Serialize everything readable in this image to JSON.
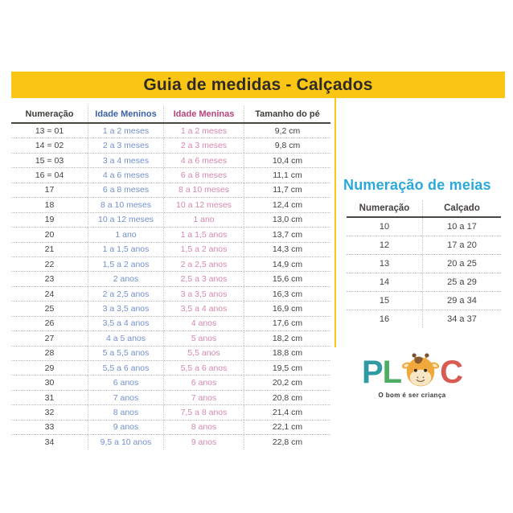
{
  "title": "Guia de medidas - Calçados",
  "main_table": {
    "headers": [
      "Numeração",
      "Idade Meninos",
      "Idade Meninas",
      "Tamanho do pé"
    ],
    "rows": [
      [
        "13 = 01",
        "1 a 2 meses",
        "1 a 2 meses",
        "9,2 cm"
      ],
      [
        "14 = 02",
        "2 a 3 meses",
        "2 a 3 meses",
        "9,8 cm"
      ],
      [
        "15 = 03",
        "3 a 4 meses",
        "4 a 6 meses",
        "10,4 cm"
      ],
      [
        "16 = 04",
        "4 a 6 meses",
        "6 a 8 meses",
        "11,1 cm"
      ],
      [
        "17",
        "6 a 8 meses",
        "8 a 10 meses",
        "11,7 cm"
      ],
      [
        "18",
        "8 a 10 meses",
        "10 a 12 meses",
        "12,4 cm"
      ],
      [
        "19",
        "10 a 12 meses",
        "1 ano",
        "13,0 cm"
      ],
      [
        "20",
        "1 ano",
        "1 a 1,5 anos",
        "13,7 cm"
      ],
      [
        "21",
        "1 a 1,5 anos",
        "1,5 a 2 anos",
        "14,3 cm"
      ],
      [
        "22",
        "1,5 a 2 anos",
        "2 a 2,5 anos",
        "14,9 cm"
      ],
      [
        "23",
        "2 anos",
        "2,5 a 3 anos",
        "15,6 cm"
      ],
      [
        "24",
        "2 a 2,5 anos",
        "3 a 3,5 anos",
        "16,3 cm"
      ],
      [
        "25",
        "3 a 3,5 anos",
        "3,5 a 4 anos",
        "16,9 cm"
      ],
      [
        "26",
        "3,5 a 4 anos",
        "4 anos",
        "17,6 cm"
      ],
      [
        "27",
        "4 a 5 anos",
        "5 anos",
        "18,2 cm"
      ],
      [
        "28",
        "5 a 5,5 anos",
        "5,5 anos",
        "18,8 cm"
      ],
      [
        "29",
        "5,5 a 6 anos",
        "5,5 a 6 anos",
        "19,5 cm"
      ],
      [
        "30",
        "6 anos",
        "6 anos",
        "20,2 cm"
      ],
      [
        "31",
        "7 anos",
        "7 anos",
        "20,8 cm"
      ],
      [
        "32",
        "8 anos",
        "7,5 a 8 anos",
        "21,4 cm"
      ],
      [
        "33",
        "9 anos",
        "8 anos",
        "22,1 cm"
      ],
      [
        "34",
        "9,5 a 10 anos",
        "9 anos",
        "22,8 cm"
      ]
    ]
  },
  "socks_section": {
    "title": "Numeração de meias",
    "headers": [
      "Numeração",
      "Calçado"
    ],
    "rows": [
      [
        "10",
        "10 a 17"
      ],
      [
        "12",
        "17 a 20"
      ],
      [
        "13",
        "20 a 25"
      ],
      [
        "14",
        "25 a 29"
      ],
      [
        "15",
        "29 a 34"
      ],
      [
        "16",
        "34 a 37"
      ]
    ]
  },
  "logo": {
    "letter_p": "P",
    "letter_l": "L",
    "letter_c": "C",
    "tagline": "O bom é ser criança"
  },
  "colors": {
    "banner_yellow": "#FBC513",
    "title_text": "#2e2b27",
    "boys_header": "#3A5FA9",
    "boys_body": "#7490CB",
    "girls_header": "#B8417C",
    "girls_body": "#D489AF",
    "socks_title_cyan": "#2BA9DC",
    "logo_teal": "#2F9AA3",
    "logo_green": "#4FAD63",
    "logo_coral": "#D85B51",
    "giraffe_orange": "#F0A93C"
  }
}
